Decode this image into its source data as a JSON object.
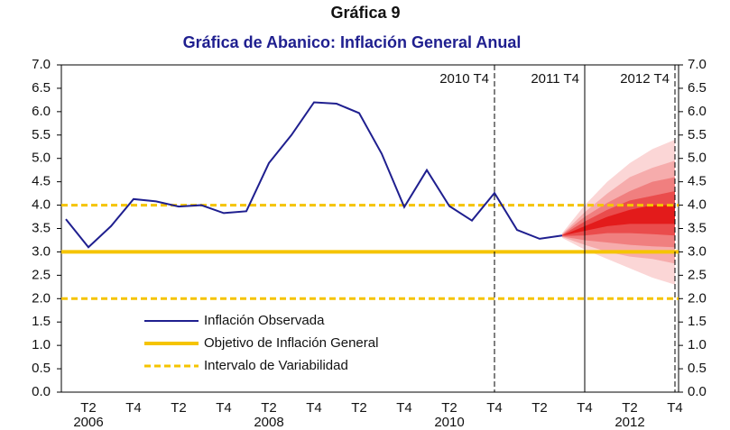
{
  "heading": "Gráfica 9",
  "chart_data": {
    "type": "fan",
    "title": "Gráfica de Abanico: Inflación General Anual",
    "categories": [
      null,
      "T2",
      null,
      "T4",
      null,
      "T2",
      null,
      "T4",
      null,
      "T2",
      null,
      "T4",
      null,
      "T2",
      null,
      "T4",
      null,
      "T2",
      null,
      "T4",
      null,
      "T2",
      null,
      "T4",
      null,
      "T2",
      null,
      "T4"
    ],
    "category_years": [
      null,
      "2006",
      null,
      null,
      null,
      null,
      null,
      null,
      null,
      "2008",
      null,
      null,
      null,
      null,
      null,
      null,
      null,
      "2010",
      null,
      null,
      null,
      null,
      null,
      null,
      null,
      "2012",
      null,
      null
    ],
    "ylim": [
      0,
      7
    ],
    "yticks": [
      {
        "value": 0,
        "label": "0.0"
      },
      0.5,
      {
        "value": 1,
        "label": "1.0"
      },
      1.5,
      {
        "value": 2,
        "label": "2.0"
      },
      2.5,
      {
        "value": 3,
        "label": "3.0"
      },
      3.5,
      {
        "value": 4,
        "label": "4.0"
      },
      4.5,
      {
        "value": 5,
        "label": "5.0"
      },
      5.5,
      {
        "value": 6,
        "label": "6.0"
      },
      6.5,
      {
        "value": 7,
        "label": "7.0"
      }
    ],
    "series": [
      {
        "name": "Inflación Observada",
        "color": "#1f1f8f",
        "values": [
          3.7,
          3.1,
          3.55,
          4.13,
          4.08,
          3.97,
          4.0,
          3.83,
          3.87,
          4.9,
          5.5,
          6.2,
          6.17,
          5.97,
          5.1,
          3.96,
          4.75,
          3.98,
          3.67,
          4.26,
          3.47,
          3.28,
          3.35,
          null,
          null,
          null,
          null,
          null
        ]
      }
    ],
    "reference_lines": [
      {
        "name": "Objetivo de Inflación General",
        "color": "#f5c400",
        "style": "solid",
        "values": [
          3
        ]
      },
      {
        "name": "Intervalo de Variabilidad",
        "color": "#f5c400",
        "style": "dashed",
        "values": [
          2,
          4
        ]
      }
    ],
    "fan": [
      {
        "color": "#fbd6d6",
        "lower": [
          null,
          null,
          null,
          null,
          null,
          null,
          null,
          null,
          null,
          null,
          null,
          null,
          null,
          null,
          null,
          null,
          null,
          null,
          null,
          null,
          null,
          null,
          3.3,
          3.05,
          2.85,
          2.65,
          2.45,
          2.3
        ],
        "upper": [
          null,
          null,
          null,
          null,
          null,
          null,
          null,
          null,
          null,
          null,
          null,
          null,
          null,
          null,
          null,
          null,
          null,
          null,
          null,
          null,
          null,
          null,
          3.4,
          4.0,
          4.5,
          4.9,
          5.2,
          5.4
        ]
      },
      {
        "color": "#f6acac",
        "lower": [
          null,
          null,
          null,
          null,
          null,
          null,
          null,
          null,
          null,
          null,
          null,
          null,
          null,
          null,
          null,
          null,
          null,
          null,
          null,
          null,
          null,
          null,
          3.32,
          3.15,
          3.0,
          2.9,
          2.85,
          2.75
        ],
        "upper": [
          null,
          null,
          null,
          null,
          null,
          null,
          null,
          null,
          null,
          null,
          null,
          null,
          null,
          null,
          null,
          null,
          null,
          null,
          null,
          null,
          null,
          null,
          3.38,
          3.85,
          4.25,
          4.6,
          4.8,
          4.95
        ]
      },
      {
        "color": "#f07f7f",
        "lower": [
          null,
          null,
          null,
          null,
          null,
          null,
          null,
          null,
          null,
          null,
          null,
          null,
          null,
          null,
          null,
          null,
          null,
          null,
          null,
          null,
          null,
          null,
          3.33,
          3.25,
          3.2,
          3.15,
          3.12,
          3.1
        ],
        "upper": [
          null,
          null,
          null,
          null,
          null,
          null,
          null,
          null,
          null,
          null,
          null,
          null,
          null,
          null,
          null,
          null,
          null,
          null,
          null,
          null,
          null,
          null,
          3.37,
          3.75,
          4.05,
          4.3,
          4.5,
          4.6
        ]
      },
      {
        "color": "#ea4c4c",
        "lower": [
          null,
          null,
          null,
          null,
          null,
          null,
          null,
          null,
          null,
          null,
          null,
          null,
          null,
          null,
          null,
          null,
          null,
          null,
          null,
          null,
          null,
          null,
          3.34,
          3.35,
          3.4,
          3.4,
          3.38,
          3.35
        ],
        "upper": [
          null,
          null,
          null,
          null,
          null,
          null,
          null,
          null,
          null,
          null,
          null,
          null,
          null,
          null,
          null,
          null,
          null,
          null,
          null,
          null,
          null,
          null,
          3.36,
          3.65,
          3.9,
          4.1,
          4.2,
          4.3
        ]
      },
      {
        "color": "#e31b1b",
        "lower": [
          null,
          null,
          null,
          null,
          null,
          null,
          null,
          null,
          null,
          null,
          null,
          null,
          null,
          null,
          null,
          null,
          null,
          null,
          null,
          null,
          null,
          null,
          3.35,
          3.45,
          3.55,
          3.6,
          3.6,
          3.6
        ],
        "upper": [
          null,
          null,
          null,
          null,
          null,
          null,
          null,
          null,
          null,
          null,
          null,
          null,
          null,
          null,
          null,
          null,
          null,
          null,
          null,
          null,
          null,
          null,
          3.35,
          3.55,
          3.75,
          3.9,
          4.0,
          4.0
        ]
      }
    ],
    "markers": [
      {
        "label": "2010 T4",
        "at": 19,
        "style": "dashed"
      },
      {
        "label": "2011 T4",
        "at": 23,
        "style": "solid"
      },
      {
        "label": "2012 T4",
        "at": 27,
        "style": "dashed"
      }
    ],
    "legend": "lower-left"
  }
}
